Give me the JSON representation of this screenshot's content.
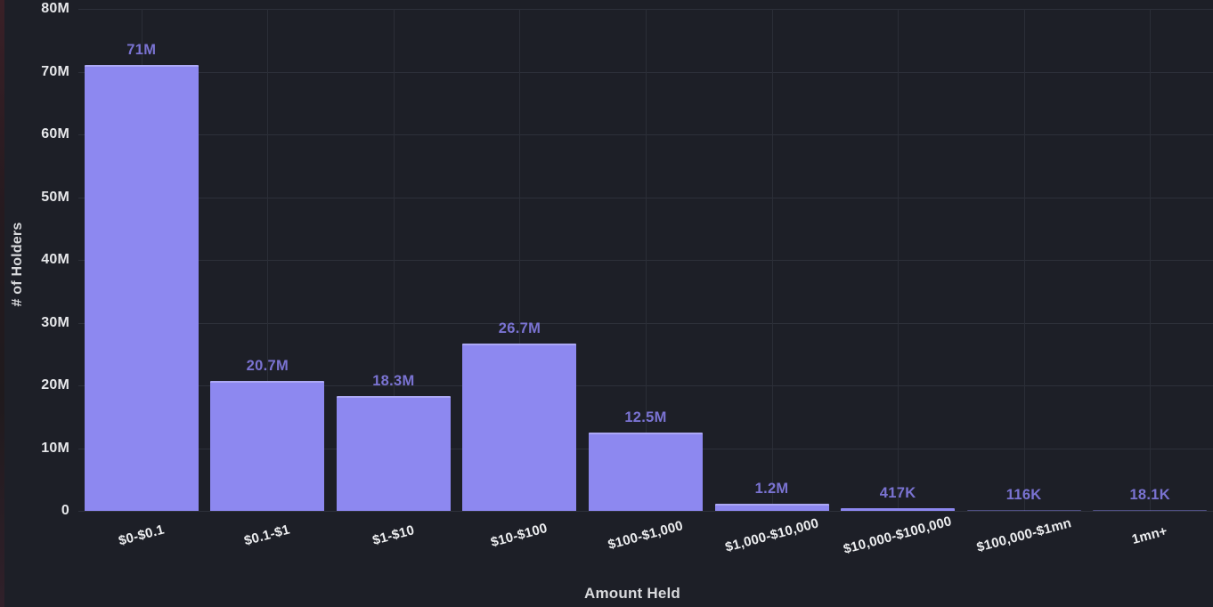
{
  "colors": {
    "background": "#1d1f27",
    "gridline": "#2d303a",
    "bar_fill": "#8d88f0",
    "bar_top_highlight": "#c7c3fa",
    "value_label": "#7a73d2",
    "tick_label": "#e7e8eb",
    "axis_title": "#d9dadd",
    "left_edge_artifact": "#3a2027"
  },
  "chart_data": {
    "type": "bar",
    "title": "",
    "xlabel": "Amount Held",
    "ylabel": "# of Holders",
    "categories": [
      "$0-$0.1",
      "$0.1-$1",
      "$1-$10",
      "$10-$100",
      "$100-$1,000",
      "$1,000-$10,000",
      "$10,000-$100,000",
      "$100,000-$1mn",
      "1mn+"
    ],
    "values": [
      71000000,
      20700000,
      18300000,
      26700000,
      12500000,
      1200000,
      417000,
      116000,
      18100
    ],
    "value_labels": [
      "71M",
      "20.7M",
      "18.3M",
      "26.7M",
      "12.5M",
      "1.2M",
      "417K",
      "116K",
      "18.1K"
    ],
    "ylim": [
      0,
      80000000
    ],
    "ytick_step": 10000000,
    "ytick_labels": [
      "0",
      "10M",
      "20M",
      "30M",
      "40M",
      "50M",
      "60M",
      "70M",
      "80M"
    ],
    "grid": true,
    "legend_position": "none",
    "xtick_rotation_deg": -15
  }
}
